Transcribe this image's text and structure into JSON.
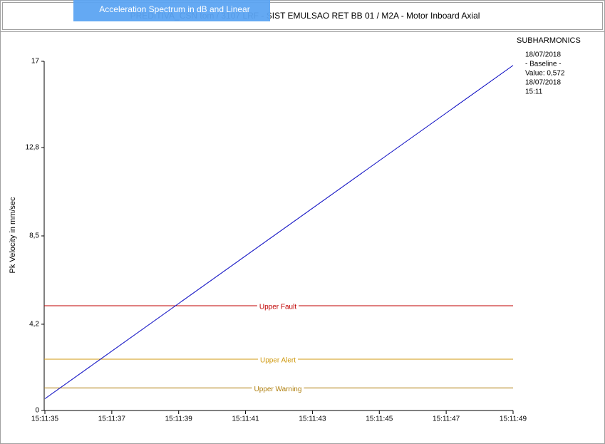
{
  "chart_data": {
    "type": "line",
    "title": "PREDITIVA_CSN tom / 3107 LRF - SIST EMULSAO RET BB 01 / M2A - Motor Inboard Axial",
    "tooltip": "Acceleration Spectrum in dB and Linear",
    "y_label": "Pk Velocity in mm/sec",
    "x": [
      "15:11:35",
      "15:11:49"
    ],
    "values": [
      0.572,
      16.8
    ],
    "color": "#0000c0",
    "xlim": [
      "15:11:35",
      "15:11:49"
    ],
    "xticks": [
      "15:11:35",
      "15:11:37",
      "15:11:39",
      "15:11:41",
      "15:11:43",
      "15:11:45",
      "15:11:47",
      "15:11:49"
    ],
    "ylim": [
      0,
      17
    ],
    "yticks": [
      0,
      {
        "value": 4.2,
        "label": "4,2"
      },
      {
        "value": 8.5,
        "label": "8,5"
      },
      {
        "value": 12.8,
        "label": "12,8"
      },
      17
    ],
    "thresholds": [
      {
        "name": "Upper Fault",
        "value": 5.1,
        "color": "#c00000"
      },
      {
        "name": "Upper Alert",
        "value": 2.5,
        "color": "#d09a10"
      },
      {
        "name": "Upper Warning",
        "value": 1.1,
        "color": "#b08010"
      }
    ],
    "legend": {
      "title": "SUBHARMONICS",
      "lines": [
        "18/07/2018",
        "- Baseline -",
        "Value: 0,572",
        "18/07/2018",
        "15:11"
      ]
    }
  }
}
